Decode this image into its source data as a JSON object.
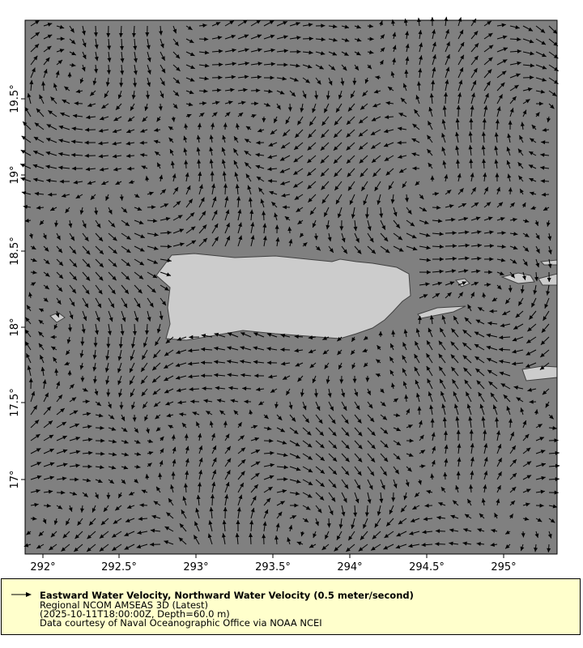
{
  "map": {
    "x_ticks": [
      "292°",
      "292.5°",
      "293°",
      "293.5°",
      "294°",
      "294.5°",
      "295°"
    ],
    "y_ticks": [
      "19.5°",
      "19°",
      "18.5°",
      "18°",
      "17.5°",
      "17°"
    ],
    "colors": {
      "ocean": "#808080",
      "land": "#cccccc",
      "coast": "#404040",
      "arrow": "#000000"
    }
  },
  "legend": {
    "title": "Eastward Water Velocity, Northward Water Velocity (0.5 meter/second)",
    "line1": "Regional NCOM AMSEAS 3D (Latest)",
    "line2": "(2025-10-11T18:00:00Z, Depth=60.0 m)",
    "line3": "Data courtesy of Naval Oceanographic Office via NOAA NCEI",
    "icon": "arrow-right-icon"
  }
}
